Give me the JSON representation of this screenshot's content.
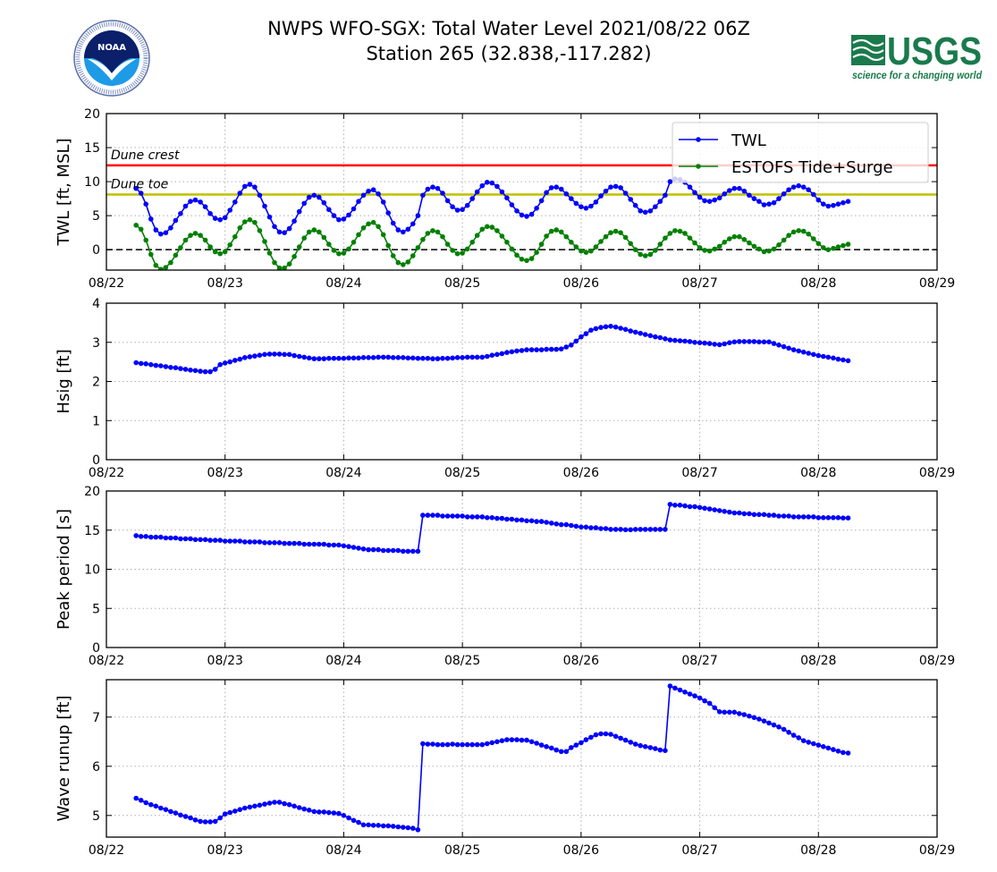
{
  "header": {
    "title_line1": "NWPS WFO-SGX: Total Water Level 2021/08/22 06Z",
    "title_line2": "Station 265 (32.838,-117.282)",
    "left_logo": "noaa-logo",
    "left_logo_text": "NOAA",
    "right_logo": "usgs-logo",
    "right_logo_text": "USGS",
    "right_logo_tagline": "science for a changing world"
  },
  "colors": {
    "twl": "#0000ff",
    "tide": "#008000",
    "dune_crest": "#ff0000",
    "dune_toe": "#bfbf00",
    "zero_line": "#000000",
    "grid": "#b0b0b0",
    "usgs_green": "#1a7a4c",
    "noaa_dark": "#0b1f6b",
    "noaa_light": "#1e9be6"
  },
  "chart_data": [
    {
      "type": "line",
      "id": "twl",
      "ylabel": "TWL [ft, MSL]",
      "ylim": [
        -3,
        20
      ],
      "yticks": [
        0,
        5,
        10,
        15,
        20
      ],
      "grid": true,
      "x_unit": "hours since 08/22 00Z",
      "xlim": [
        0,
        168
      ],
      "xticks": [
        0,
        24,
        48,
        72,
        96,
        120,
        144,
        168
      ],
      "xtick_labels": [
        "08/22",
        "08/23",
        "08/24",
        "08/25",
        "08/26",
        "08/27",
        "08/28",
        "08/29"
      ],
      "x_start": 6,
      "x_step": 1,
      "legend_position": "top-right",
      "hlines": [
        {
          "name": "Dune crest",
          "value": 12.4,
          "color_key": "dune_crest",
          "label": "Dune crest"
        },
        {
          "name": "Dune toe",
          "value": 8.1,
          "color_key": "dune_toe",
          "label": "Dune toe"
        },
        {
          "name": "zero",
          "value": 0,
          "color_key": "zero_line",
          "label": ""
        }
      ],
      "series": [
        {
          "name": "TWL",
          "color_key": "twl",
          "values": [
            9.0,
            8.3,
            6.7,
            4.5,
            2.9,
            2.3,
            2.5,
            3.2,
            4.3,
            5.3,
            6.4,
            7.1,
            7.3,
            7.0,
            6.3,
            5.3,
            4.6,
            4.4,
            4.7,
            5.8,
            7.0,
            8.3,
            9.3,
            9.6,
            9.2,
            8.0,
            6.4,
            4.8,
            3.4,
            2.6,
            2.5,
            3.1,
            4.2,
            5.6,
            6.8,
            7.7,
            8.0,
            7.7,
            6.9,
            5.9,
            5.0,
            4.4,
            4.5,
            5.1,
            6.0,
            7.1,
            8.0,
            8.6,
            8.8,
            8.2,
            7.0,
            5.4,
            3.9,
            2.9,
            2.6,
            3.0,
            3.8,
            5.0,
            8.0,
            8.9,
            9.2,
            9.0,
            8.3,
            7.2,
            6.3,
            5.8,
            5.9,
            6.5,
            7.5,
            8.5,
            9.4,
            9.9,
            9.8,
            9.3,
            8.5,
            7.6,
            6.6,
            5.7,
            5.1,
            4.9,
            5.2,
            6.1,
            7.2,
            8.4,
            9.1,
            9.2,
            8.9,
            8.2,
            7.5,
            6.8,
            6.3,
            6.1,
            6.4,
            7.0,
            7.9,
            8.6,
            9.2,
            9.3,
            9.1,
            8.3,
            7.4,
            6.5,
            5.7,
            5.5,
            5.7,
            6.3,
            7.1,
            8.0,
            10.0,
            10.4,
            10.3,
            9.9,
            9.2,
            8.4,
            7.7,
            7.2,
            7.1,
            7.3,
            7.6,
            8.2,
            8.7,
            9.0,
            9.0,
            8.6,
            8.0,
            7.5,
            7.1,
            6.6,
            6.7,
            6.9,
            7.5,
            8.2,
            8.8,
            9.2,
            9.4,
            9.2,
            8.8,
            8.1,
            7.3,
            6.7,
            6.4,
            6.5,
            6.7,
            6.9,
            7.1
          ]
        },
        {
          "name": "ESTOFS Tide+Surge",
          "color_key": "tide",
          "values": [
            3.6,
            3.0,
            1.4,
            -0.7,
            -2.3,
            -2.9,
            -2.6,
            -1.9,
            -0.8,
            0.3,
            1.4,
            2.1,
            2.4,
            2.1,
            1.4,
            0.4,
            -0.3,
            -0.6,
            -0.3,
            0.7,
            1.9,
            3.2,
            4.1,
            4.4,
            4.0,
            2.8,
            1.2,
            -0.5,
            -1.9,
            -2.7,
            -2.7,
            -2.1,
            -1.0,
            0.4,
            1.7,
            2.6,
            2.9,
            2.6,
            1.8,
            0.8,
            -0.1,
            -0.6,
            -0.5,
            0.1,
            1.1,
            2.2,
            3.2,
            3.8,
            4.0,
            3.4,
            2.2,
            0.6,
            -0.9,
            -1.9,
            -2.2,
            -1.8,
            -0.9,
            0.3,
            1.5,
            2.4,
            2.8,
            2.6,
            1.9,
            0.8,
            -0.1,
            -0.6,
            -0.5,
            0.1,
            1.1,
            2.1,
            3.0,
            3.4,
            3.3,
            2.8,
            2.0,
            1.1,
            0.1,
            -0.8,
            -1.4,
            -1.6,
            -1.3,
            -0.4,
            0.8,
            2.0,
            2.7,
            2.9,
            2.6,
            1.9,
            1.1,
            0.4,
            -0.2,
            -0.4,
            -0.2,
            0.4,
            1.2,
            1.9,
            2.5,
            2.7,
            2.5,
            1.8,
            0.9,
            0.0,
            -0.7,
            -0.9,
            -0.7,
            -0.1,
            0.8,
            1.7,
            2.4,
            2.8,
            2.7,
            2.4,
            1.7,
            1.0,
            0.3,
            -0.1,
            -0.2,
            0.1,
            0.5,
            1.1,
            1.6,
            1.9,
            1.9,
            1.5,
            1.0,
            0.5,
            0.1,
            -0.3,
            -0.2,
            0.1,
            0.7,
            1.4,
            2.1,
            2.6,
            2.8,
            2.7,
            2.3,
            1.6,
            0.9,
            0.3,
            0.0,
            0.2,
            0.4,
            0.6,
            0.8
          ]
        }
      ]
    },
    {
      "type": "line",
      "id": "hsig",
      "ylabel": "Hsig [ft]",
      "ylim": [
        0,
        4
      ],
      "yticks": [
        0,
        1,
        2,
        3,
        4
      ],
      "grid": true,
      "x_unit": "hours since 08/22 00Z",
      "xlim": [
        0,
        168
      ],
      "xticks": [
        0,
        24,
        48,
        72,
        96,
        120,
        144,
        168
      ],
      "xtick_labels": [
        "08/22",
        "08/23",
        "08/24",
        "08/25",
        "08/26",
        "08/27",
        "08/28",
        "08/29"
      ],
      "x_start": 6,
      "x_step": 1,
      "series": [
        {
          "name": "Hsig",
          "color_key": "twl",
          "values": [
            2.48,
            2.46,
            2.45,
            2.43,
            2.41,
            2.4,
            2.38,
            2.36,
            2.35,
            2.33,
            2.31,
            2.29,
            2.28,
            2.26,
            2.25,
            2.25,
            2.31,
            2.43,
            2.47,
            2.5,
            2.54,
            2.57,
            2.61,
            2.63,
            2.65,
            2.67,
            2.69,
            2.7,
            2.7,
            2.7,
            2.69,
            2.69,
            2.66,
            2.64,
            2.62,
            2.6,
            2.58,
            2.58,
            2.58,
            2.59,
            2.59,
            2.59,
            2.59,
            2.6,
            2.6,
            2.6,
            2.61,
            2.61,
            2.61,
            2.62,
            2.62,
            2.62,
            2.61,
            2.61,
            2.61,
            2.6,
            2.6,
            2.59,
            2.59,
            2.59,
            2.58,
            2.58,
            2.59,
            2.59,
            2.6,
            2.61,
            2.61,
            2.62,
            2.62,
            2.62,
            2.62,
            2.64,
            2.67,
            2.69,
            2.71,
            2.74,
            2.76,
            2.78,
            2.79,
            2.81,
            2.81,
            2.81,
            2.81,
            2.82,
            2.82,
            2.82,
            2.83,
            2.88,
            2.93,
            3.03,
            3.14,
            3.22,
            3.31,
            3.35,
            3.38,
            3.4,
            3.41,
            3.39,
            3.36,
            3.33,
            3.29,
            3.26,
            3.23,
            3.2,
            3.17,
            3.14,
            3.12,
            3.09,
            3.06,
            3.05,
            3.04,
            3.03,
            3.02,
            3.0,
            2.99,
            2.98,
            2.97,
            2.95,
            2.94,
            2.96,
            2.99,
            3.01,
            3.02,
            3.02,
            3.02,
            3.02,
            3.01,
            3.01,
            3.01,
            2.97,
            2.93,
            2.89,
            2.85,
            2.81,
            2.78,
            2.75,
            2.72,
            2.69,
            2.66,
            2.64,
            2.62,
            2.6,
            2.57,
            2.55,
            2.53
          ]
        }
      ]
    },
    {
      "type": "line",
      "id": "peak-period",
      "ylabel": "Peak period [s]",
      "ylim": [
        0,
        20
      ],
      "yticks": [
        0,
        5,
        10,
        15,
        20
      ],
      "grid": true,
      "x_unit": "hours since 08/22 00Z",
      "xlim": [
        0,
        168
      ],
      "xticks": [
        0,
        24,
        48,
        72,
        96,
        120,
        144,
        168
      ],
      "xtick_labels": [
        "08/22",
        "08/23",
        "08/24",
        "08/25",
        "08/26",
        "08/27",
        "08/28",
        "08/29"
      ],
      "x_start": 6,
      "x_step": 1,
      "series": [
        {
          "name": "Peak period",
          "color_key": "twl",
          "values": [
            14.3,
            14.2,
            14.2,
            14.1,
            14.1,
            14.1,
            14.0,
            14.0,
            14.0,
            13.9,
            13.9,
            13.9,
            13.8,
            13.8,
            13.8,
            13.7,
            13.7,
            13.7,
            13.6,
            13.6,
            13.6,
            13.6,
            13.5,
            13.5,
            13.5,
            13.5,
            13.4,
            13.4,
            13.4,
            13.4,
            13.3,
            13.3,
            13.3,
            13.3,
            13.2,
            13.2,
            13.2,
            13.2,
            13.2,
            13.1,
            13.1,
            13.1,
            13.0,
            12.9,
            12.8,
            12.7,
            12.6,
            12.5,
            12.5,
            12.5,
            12.4,
            12.4,
            12.4,
            12.4,
            12.3,
            12.3,
            12.3,
            12.3,
            16.9,
            16.9,
            16.9,
            16.9,
            16.8,
            16.8,
            16.8,
            16.8,
            16.8,
            16.7,
            16.7,
            16.7,
            16.7,
            16.6,
            16.6,
            16.5,
            16.5,
            16.4,
            16.4,
            16.3,
            16.3,
            16.2,
            16.2,
            16.1,
            16.1,
            16.0,
            15.9,
            15.8,
            15.7,
            15.7,
            15.6,
            15.5,
            15.4,
            15.4,
            15.3,
            15.3,
            15.2,
            15.2,
            15.1,
            15.1,
            15.1,
            15.05,
            15.05,
            15.1,
            15.1,
            15.1,
            15.1,
            15.1,
            15.1,
            15.1,
            18.3,
            18.2,
            18.2,
            18.1,
            18.0,
            18.0,
            17.9,
            17.8,
            17.7,
            17.6,
            17.5,
            17.4,
            17.3,
            17.2,
            17.2,
            17.1,
            17.1,
            17.0,
            17.0,
            17.0,
            16.9,
            16.9,
            16.8,
            16.8,
            16.8,
            16.7,
            16.7,
            16.7,
            16.7,
            16.7,
            16.6,
            16.6,
            16.6,
            16.6,
            16.6,
            16.55,
            16.55
          ]
        }
      ]
    },
    {
      "type": "line",
      "id": "wave-runup",
      "ylabel": "Wave runup [ft]",
      "ylim": [
        4.56,
        7.76
      ],
      "yticks": [
        5,
        6,
        7
      ],
      "grid": true,
      "x_unit": "hours since 08/22 00Z",
      "xlim": [
        0,
        168
      ],
      "xticks": [
        0,
        24,
        48,
        72,
        96,
        120,
        144,
        168
      ],
      "xtick_labels": [
        "08/22",
        "08/23",
        "08/24",
        "08/25",
        "08/26",
        "08/27",
        "08/28",
        "08/29"
      ],
      "x_start": 6,
      "x_step": 1,
      "series": [
        {
          "name": "Wave runup",
          "color_key": "twl",
          "values": [
            5.35,
            5.31,
            5.26,
            5.22,
            5.19,
            5.15,
            5.12,
            5.08,
            5.05,
            5.01,
            4.98,
            4.95,
            4.91,
            4.88,
            4.87,
            4.87,
            4.88,
            4.95,
            5.03,
            5.06,
            5.09,
            5.12,
            5.15,
            5.17,
            5.19,
            5.21,
            5.23,
            5.25,
            5.27,
            5.27,
            5.24,
            5.22,
            5.19,
            5.16,
            5.13,
            5.11,
            5.08,
            5.07,
            5.07,
            5.06,
            5.05,
            5.04,
            5.0,
            4.95,
            4.9,
            4.86,
            4.81,
            4.81,
            4.8,
            4.8,
            4.79,
            4.79,
            4.78,
            4.77,
            4.76,
            4.75,
            4.74,
            4.71,
            6.46,
            6.45,
            6.45,
            6.44,
            6.44,
            6.44,
            6.45,
            6.44,
            6.44,
            6.44,
            6.44,
            6.44,
            6.44,
            6.46,
            6.48,
            6.5,
            6.52,
            6.54,
            6.54,
            6.54,
            6.53,
            6.53,
            6.5,
            6.47,
            6.43,
            6.4,
            6.37,
            6.33,
            6.3,
            6.3,
            6.38,
            6.43,
            6.48,
            6.54,
            6.59,
            6.64,
            6.66,
            6.66,
            6.65,
            6.61,
            6.57,
            6.53,
            6.49,
            6.45,
            6.42,
            6.4,
            6.38,
            6.36,
            6.33,
            6.32,
            7.63,
            7.59,
            7.55,
            7.51,
            7.47,
            7.43,
            7.39,
            7.33,
            7.28,
            7.19,
            7.11,
            7.1,
            7.1,
            7.1,
            7.07,
            7.05,
            7.02,
            6.99,
            6.96,
            6.92,
            6.88,
            6.84,
            6.8,
            6.75,
            6.69,
            6.63,
            6.58,
            6.52,
            6.49,
            6.46,
            6.43,
            6.4,
            6.37,
            6.34,
            6.31,
            6.28,
            6.27
          ]
        }
      ]
    }
  ]
}
